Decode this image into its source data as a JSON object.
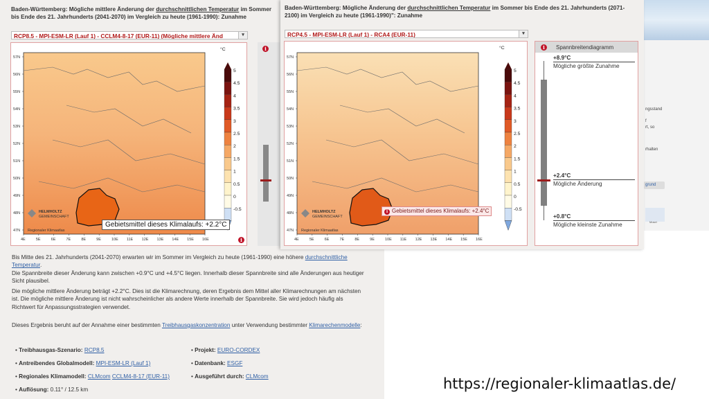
{
  "left_panel": {
    "title": [
      "Baden-Württemberg: Mögliche mittlere Änderung der ",
      "durchschnittlichen Temperatur",
      " im Sommer bis Ende des 21. Jahrhunderts (2041-2070) im Vergleich zu heute (1961-1990): Zunahme"
    ],
    "select_value": "RCP8.5 - MPI-ESM-LR (Lauf 1) - CCLM4-8-17 (EUR-11)   (Mögliche mittlere Änd",
    "unit": "°C",
    "tooltip": "Gebietsmittel dieses Klimalaufs: +2.2°C",
    "paragraph1": [
      "Bis Mitte des 21. Jahrhunderts (2041-2070) erwarten wir im Sommer im Vergleich zu heute (1961-1990) eine höhere ",
      "durchschnittliche Temperatur",
      "."
    ],
    "paragraph2": "Die Spannbreite dieser Änderung kann zwischen +0.9°C und +4.5°C liegen. Innerhalb dieser Spannbreite sind alle Änderungen aus heutiger Sicht plausibel.",
    "paragraph3": "Die mögliche mittlere Änderung beträgt +2.2°C. Dies ist die Klimarechnung, deren Ergebnis dem Mittel aller Klimarechnungen am nächsten ist. Die mögliche mittlere Änderung ist nicht wahrscheinlicher als andere Werte innerhalb der Spannbreite. Sie wird jedoch häufig als Richtwert für Anpassungsstrategien verwendet.",
    "paragraph4": [
      "Dieses Ergebnis beruht auf der Annahme einer bestimmten ",
      "Treibhausgaskonzentration",
      " unter Verwendung bestimmter ",
      "Klimarechenmodelle",
      ":"
    ],
    "meta_left": [
      {
        "label": "Treibhausgas-Szenario:",
        "values": [
          "RCP8.5"
        ]
      },
      {
        "label": "Antreibendes Globalmodell:",
        "values": [
          "MPI-ESM-LR (Lauf 1)"
        ]
      },
      {
        "label": "Regionales Klimamodell:",
        "values": [
          "CLMcom",
          "CCLM4-8-17 (EUR-11)"
        ]
      },
      {
        "label": "Auflösung:",
        "values": [
          "0.11° / 12.5 km"
        ]
      }
    ],
    "meta_right": [
      {
        "label": "Projekt:",
        "values": [
          "EURO-CORDEX"
        ]
      },
      {
        "label": "Datenbank:",
        "values": [
          "ESGF"
        ]
      },
      {
        "label": "Ausgeführt durch:",
        "values": [
          "CLMcom"
        ]
      }
    ]
  },
  "right_panel": {
    "title": [
      "Baden-Württemberg: Mögliche Änderung der ",
      "durchschnittlichen Temperatur",
      " im Sommer bis Ende des 21. Jahrhunderts (2071-2100) im Vergleich zu heute (1961-1990)\": Zunahme"
    ],
    "select_value": "RCP4.5 - MPI-ESM-LR (Lauf 1) - RCA4 (EUR-11)",
    "unit": "°C",
    "tooltip": "Gebietsmittel dieses Klimalaufs: +2.4°C",
    "range_header": "Spannbreitendiagramm",
    "range_items": [
      {
        "value": "+8.9°C",
        "label": "Mögliche größte Zunahme"
      },
      {
        "value": "+2.4°C",
        "label": "Mögliche Änderung"
      },
      {
        "value": "+0.8°C",
        "label": "Mögliche kleinste Zunahme"
      }
    ]
  },
  "map": {
    "lat_ticks": [
      "57N",
      "56N",
      "55N",
      "54N",
      "53N",
      "52N",
      "51N",
      "50N",
      "49N",
      "48N",
      "47N"
    ],
    "lon_ticks": [
      "4E",
      "5E",
      "6E",
      "7E",
      "8E",
      "9E",
      "10E",
      "11E",
      "12E",
      "13E",
      "14E",
      "15E",
      "16E"
    ],
    "logo_line1": "HELMHOLTZ",
    "logo_line2": "GEMEINSCHAFT",
    "credit": "Regionaler Klimaatlas",
    "colorbar_ticks": [
      "5",
      "4.5",
      "4",
      "3.5",
      "3",
      "2.5",
      "2",
      "1.5",
      "1",
      "0.5",
      "0",
      "-0.5"
    ],
    "colorbar_colors": [
      "#4a0a0a",
      "#7a1410",
      "#a52314",
      "#c8391b",
      "#e05a26",
      "#ee8240",
      "#f5a865",
      "#f9c98c",
      "#fde3b0",
      "#fff4cc",
      "#fffbe6",
      "#cfe0f5",
      "#7fa8df"
    ]
  },
  "bg_fragments": [
    "ngsstand",
    "f",
    "rt, so",
    "rhalten",
    "grund",
    "Mosel"
  ],
  "footer_url": "https://regionaler-klimaatlas.de/"
}
